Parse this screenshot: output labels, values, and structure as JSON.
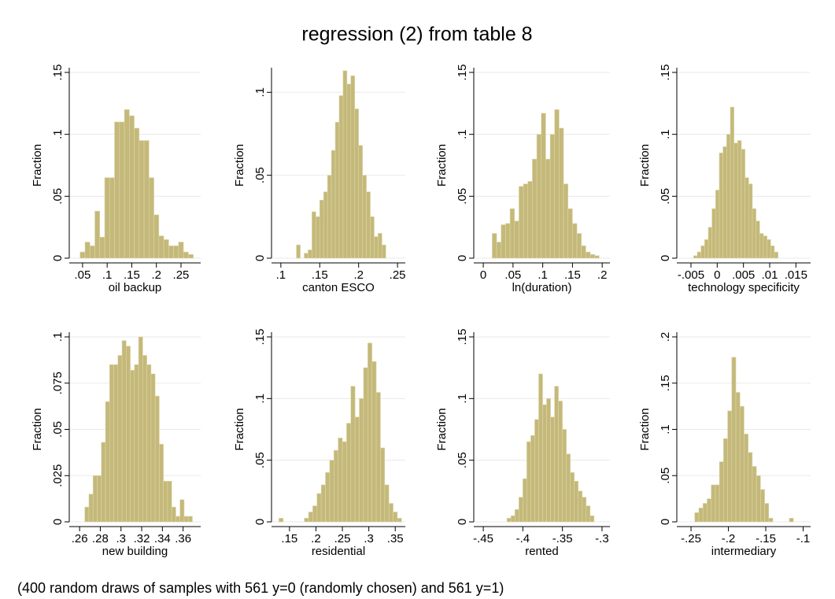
{
  "title": "regression (2) from table 8",
  "note": "(400 random draws of samples with 561 y=0 (randomly chosen) and 561 y=1)",
  "chart_data": [
    {
      "type": "histogram",
      "xlabel": "oil backup",
      "ylabel": "Fraction",
      "color": "#c4b97a",
      "grid": true,
      "bins": [
        0.045,
        0.055,
        0.065,
        0.075,
        0.085,
        0.095,
        0.105,
        0.115,
        0.125,
        0.135,
        0.145,
        0.155,
        0.165,
        0.175,
        0.185,
        0.195,
        0.205,
        0.215,
        0.225,
        0.235,
        0.245,
        0.255,
        0.265,
        0.275
      ],
      "values": [
        0.005,
        0.013,
        0.01,
        0.038,
        0.017,
        0.065,
        0.065,
        0.11,
        0.11,
        0.12,
        0.115,
        0.105,
        0.095,
        0.095,
        0.065,
        0.035,
        0.018,
        0.015,
        0.01,
        0.01,
        0.013,
        0.005,
        0.003
      ],
      "xlim": [
        0.023,
        0.29
      ],
      "ylim": [
        0,
        0.15
      ],
      "xticks": [
        {
          "value": 0.05,
          "label": ".05"
        },
        {
          "value": 0.1,
          "label": ".1"
        },
        {
          "value": 0.15,
          "label": ".15"
        },
        {
          "value": 0.2,
          "label": ".2"
        },
        {
          "value": 0.25,
          "label": ".25"
        }
      ],
      "yticks": [
        0,
        {
          "value": 0.05,
          "label": ".05"
        },
        {
          "value": 0.1,
          "label": ".1"
        },
        {
          "value": 0.15,
          "label": ".15"
        }
      ]
    },
    {
      "type": "histogram",
      "xlabel": "canton ESCO",
      "ylabel": "Fraction",
      "color": "#c4b97a",
      "grid": true,
      "bins": [
        0.12,
        0.125,
        0.13,
        0.135,
        0.14,
        0.145,
        0.15,
        0.155,
        0.16,
        0.165,
        0.17,
        0.175,
        0.18,
        0.185,
        0.19,
        0.195,
        0.2,
        0.205,
        0.21,
        0.215,
        0.22,
        0.225,
        0.23,
        0.235
      ],
      "values": [
        0.008,
        0,
        0.003,
        0.005,
        0.028,
        0.025,
        0.035,
        0.04,
        0.05,
        0.065,
        0.082,
        0.098,
        0.113,
        0.105,
        0.11,
        0.09,
        0.068,
        0.05,
        0.04,
        0.025,
        0.013,
        0.015,
        0.008
      ],
      "xlim": [
        0.088,
        0.26
      ],
      "ylim": [
        0,
        0.112
      ],
      "xticks": [
        {
          "value": 0.1,
          "label": ".1"
        },
        {
          "value": 0.15,
          "label": ".15"
        },
        {
          "value": 0.2,
          "label": ".2"
        },
        {
          "value": 0.25,
          "label": ".25"
        }
      ],
      "yticks": [
        0,
        {
          "value": 0.05,
          "label": ".05"
        },
        {
          "value": 0.1,
          "label": ".1"
        }
      ]
    },
    {
      "type": "histogram",
      "xlabel": "ln(duration)",
      "ylabel": "Fraction",
      "color": "#c4b97a",
      "grid": true,
      "bins": [
        0.015,
        0.0225,
        0.03,
        0.0375,
        0.045,
        0.0525,
        0.06,
        0.0675,
        0.075,
        0.0825,
        0.09,
        0.0975,
        0.105,
        0.1125,
        0.12,
        0.1275,
        0.135,
        0.1425,
        0.15,
        0.1575,
        0.165,
        0.1725,
        0.18,
        0.1875,
        0.195
      ],
      "values": [
        0.02,
        0.013,
        0.027,
        0.028,
        0.04,
        0.03,
        0.058,
        0.06,
        0.062,
        0.08,
        0.1,
        0.117,
        0.08,
        0.1,
        0.12,
        0.105,
        0.06,
        0.04,
        0.028,
        0.02,
        0.01,
        0.005,
        0.003,
        0.002
      ],
      "xlim": [
        -0.016,
        0.213
      ],
      "ylim": [
        0,
        0.15
      ],
      "xticks": [
        0,
        {
          "value": 0.05,
          "label": ".05"
        },
        {
          "value": 0.1,
          "label": ".1"
        },
        {
          "value": 0.15,
          "label": ".15"
        },
        {
          "value": 0.2,
          "label": ".2"
        }
      ],
      "yticks": [
        0,
        {
          "value": 0.05,
          "label": ".05"
        },
        {
          "value": 0.1,
          "label": ".1"
        },
        {
          "value": 0.15,
          "label": ".15"
        }
      ]
    },
    {
      "type": "histogram",
      "xlabel": "technology specificity",
      "ylabel": "Fraction",
      "color": "#c4b97a",
      "grid": true,
      "bins": [
        -0.0045,
        -0.0038,
        -0.0031,
        -0.0024,
        -0.0017,
        -0.001,
        -0.0003,
        0.0004,
        0.0011,
        0.0018,
        0.0025,
        0.0032,
        0.0039,
        0.0046,
        0.0053,
        0.006,
        0.0067,
        0.0074,
        0.0081,
        0.0088,
        0.0095,
        0.0102,
        0.0109,
        0.0116
      ],
      "values": [
        0.002,
        0.005,
        0.01,
        0.015,
        0.025,
        0.04,
        0.055,
        0.085,
        0.09,
        0.1,
        0.122,
        0.093,
        0.095,
        0.088,
        0.065,
        0.06,
        0.04,
        0.03,
        0.02,
        0.018,
        0.015,
        0.01,
        0.005
      ],
      "xlim": [
        -0.0077,
        0.0178
      ],
      "ylim": [
        0,
        0.15
      ],
      "xticks": [
        {
          "value": -0.005,
          "label": "-.005"
        },
        0,
        {
          "value": 0.005,
          "label": ".005"
        },
        {
          "value": 0.01,
          "label": ".01"
        },
        {
          "value": 0.015,
          "label": ".015"
        }
      ],
      "yticks": [
        0,
        {
          "value": 0.05,
          "label": ".05"
        },
        {
          "value": 0.1,
          "label": ".1"
        },
        {
          "value": 0.15,
          "label": ".15"
        }
      ]
    },
    {
      "type": "histogram",
      "xlabel": "new building",
      "ylabel": "Fraction",
      "color": "#c4b97a",
      "grid": true,
      "bins": [
        0.265,
        0.269,
        0.273,
        0.277,
        0.281,
        0.285,
        0.289,
        0.293,
        0.297,
        0.301,
        0.305,
        0.309,
        0.313,
        0.317,
        0.321,
        0.325,
        0.329,
        0.333,
        0.337,
        0.341,
        0.345,
        0.349,
        0.353,
        0.357,
        0.361,
        0.365,
        0.369
      ],
      "values": [
        0.008,
        0.015,
        0.025,
        0.025,
        0.043,
        0.065,
        0.085,
        0.085,
        0.09,
        0.098,
        0.095,
        0.082,
        0.085,
        0.1,
        0.09,
        0.085,
        0.08,
        0.068,
        0.042,
        0.022,
        0.022,
        0.008,
        0.003,
        0.012,
        0.003,
        0.003
      ],
      "xlim": [
        0.25,
        0.377
      ],
      "ylim": [
        0,
        0.1
      ],
      "xticks": [
        {
          "value": 0.26,
          "label": ".26"
        },
        {
          "value": 0.28,
          "label": ".28"
        },
        {
          "value": 0.3,
          "label": ".3"
        },
        {
          "value": 0.32,
          "label": ".32"
        },
        {
          "value": 0.34,
          "label": ".34"
        },
        {
          "value": 0.36,
          "label": ".36"
        }
      ],
      "yticks": [
        0,
        {
          "value": 0.025,
          "label": ".025"
        },
        {
          "value": 0.05,
          "label": ".05"
        },
        {
          "value": 0.075,
          "label": ".075"
        },
        {
          "value": 0.1,
          "label": ".1"
        }
      ]
    },
    {
      "type": "histogram",
      "xlabel": "residential",
      "ylabel": "Fraction",
      "color": "#c4b97a",
      "grid": true,
      "bins": [
        0.13,
        0.138,
        0.146,
        0.154,
        0.162,
        0.17,
        0.178,
        0.186,
        0.194,
        0.202,
        0.21,
        0.218,
        0.226,
        0.234,
        0.242,
        0.25,
        0.258,
        0.266,
        0.274,
        0.282,
        0.29,
        0.298,
        0.306,
        0.314,
        0.322,
        0.33,
        0.338,
        0.346,
        0.354,
        0.362
      ],
      "values": [
        0.003,
        0,
        0,
        0,
        0,
        0,
        0.003,
        0.008,
        0.013,
        0.023,
        0.03,
        0.04,
        0.05,
        0.058,
        0.068,
        0.065,
        0.08,
        0.11,
        0.085,
        0.1,
        0.125,
        0.145,
        0.13,
        0.105,
        0.06,
        0.03,
        0.015,
        0.008,
        0.003
      ],
      "xlim": [
        0.116,
        0.369
      ],
      "ylim": [
        0,
        0.15
      ],
      "xticks": [
        {
          "value": 0.15,
          "label": ".15"
        },
        {
          "value": 0.2,
          "label": ".2"
        },
        {
          "value": 0.25,
          "label": ".25"
        },
        {
          "value": 0.3,
          "label": ".3"
        },
        {
          "value": 0.35,
          "label": ".35"
        }
      ],
      "yticks": [
        0,
        {
          "value": 0.05,
          "label": ".05"
        },
        {
          "value": 0.1,
          "label": ".1"
        },
        {
          "value": 0.15,
          "label": ".15"
        }
      ]
    },
    {
      "type": "histogram",
      "xlabel": "rented",
      "ylabel": "Fraction",
      "color": "#c4b97a",
      "grid": true,
      "bins": [
        -0.42,
        -0.415,
        -0.41,
        -0.405,
        -0.4,
        -0.395,
        -0.39,
        -0.385,
        -0.38,
        -0.375,
        -0.37,
        -0.365,
        -0.36,
        -0.355,
        -0.35,
        -0.345,
        -0.34,
        -0.335,
        -0.33,
        -0.325,
        -0.32,
        -0.315,
        -0.31
      ],
      "values": [
        0.003,
        0.005,
        0.01,
        0.02,
        0.035,
        0.065,
        0.07,
        0.083,
        0.12,
        0.095,
        0.1,
        0.085,
        0.11,
        0.098,
        0.075,
        0.055,
        0.04,
        0.033,
        0.025,
        0.02,
        0.013,
        0.005
      ],
      "xlim": [
        -0.462,
        -0.29
      ],
      "ylim": [
        0,
        0.15
      ],
      "xticks": [
        {
          "value": -0.45,
          "label": "-.45"
        },
        {
          "value": -0.4,
          "label": "-.4"
        },
        {
          "value": -0.35,
          "label": "-.35"
        },
        {
          "value": -0.3,
          "label": "-.3"
        }
      ],
      "yticks": [
        0,
        {
          "value": 0.05,
          "label": ".05"
        },
        {
          "value": 0.1,
          "label": ".1"
        },
        {
          "value": 0.15,
          "label": ".15"
        }
      ]
    },
    {
      "type": "histogram",
      "xlabel": "intermediary",
      "ylabel": "Fraction",
      "color": "#c4b97a",
      "grid": true,
      "bins": [
        -0.245,
        -0.2395,
        -0.234,
        -0.2285,
        -0.223,
        -0.2175,
        -0.212,
        -0.2065,
        -0.201,
        -0.1955,
        -0.19,
        -0.1845,
        -0.179,
        -0.1735,
        -0.168,
        -0.1625,
        -0.157,
        -0.1515,
        -0.146,
        -0.1405,
        -0.135,
        -0.1295,
        -0.124,
        -0.1185,
        -0.113,
        -0.1075
      ],
      "values": [
        0.01,
        0.015,
        0.02,
        0.025,
        0.04,
        0.04,
        0.065,
        0.09,
        0.12,
        0.178,
        0.14,
        0.125,
        0.095,
        0.075,
        0.06,
        0.05,
        0.035,
        0.02,
        0.004,
        0,
        0,
        0,
        0,
        0.004,
        0
      ],
      "xlim": [
        -0.269,
        -0.09
      ],
      "ylim": [
        0,
        0.2
      ],
      "xticks": [
        {
          "value": -0.25,
          "label": "-.25"
        },
        {
          "value": -0.2,
          "label": "-.2"
        },
        {
          "value": -0.15,
          "label": "-.15"
        },
        {
          "value": -0.1,
          "label": "-.1"
        }
      ],
      "yticks": [
        0,
        {
          "value": 0.05,
          "label": ".05"
        },
        {
          "value": 0.1,
          "label": ".1"
        },
        {
          "value": 0.15,
          "label": ".15"
        },
        {
          "value": 0.2,
          "label": ".2"
        }
      ]
    }
  ]
}
